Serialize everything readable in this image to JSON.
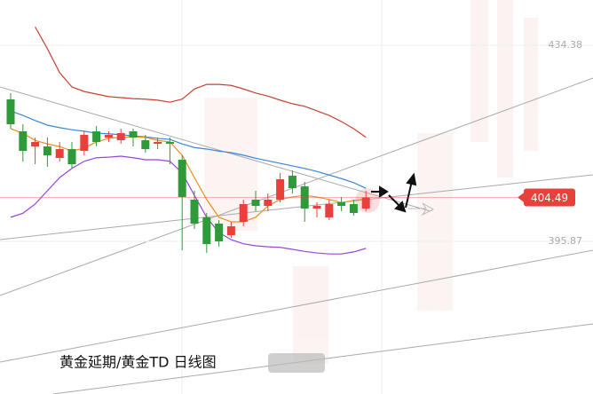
{
  "chart_data": {
    "type": "candlestick",
    "title": "黄金延期/黄金TD 日线图",
    "open": [
      423.75,
      417.48,
      414.52,
      414.52,
      412.25,
      413.99,
      413.64,
      417.48,
      416.26,
      415.74,
      417.48,
      415.74,
      415.04,
      415.39,
      411.9,
      404.06,
      400.58,
      399.36,
      397.09,
      399.7,
      404.06,
      402.84,
      404.06,
      408.77,
      406.67,
      402.32,
      400.58,
      403.54,
      403.19,
      402.32
    ],
    "high": [
      424.97,
      418.87,
      416.26,
      416.26,
      415.39,
      415.39,
      417.48,
      418.52,
      417.48,
      418.0,
      418.0,
      416.78,
      416.26,
      416.26,
      412.77,
      405.8,
      401.45,
      400.05,
      399.7,
      404.06,
      405.8,
      405.28,
      409.29,
      409.81,
      407.55,
      403.54,
      404.06,
      404.58,
      404.06,
      405.8
    ],
    "low": [
      418.0,
      411.55,
      411.03,
      410.51,
      411.55,
      410.16,
      412.77,
      414.52,
      415.39,
      415.04,
      414.52,
      413.3,
      413.99,
      411.03,
      394.13,
      398.31,
      393.61,
      394.83,
      396.57,
      398.83,
      401.8,
      401.8,
      403.54,
      405.28,
      399.7,
      400.58,
      400.05,
      401.8,
      400.92,
      401.8
    ],
    "close": [
      418.87,
      413.64,
      415.39,
      412.77,
      413.99,
      411.03,
      416.78,
      415.39,
      416.78,
      417.13,
      416.26,
      413.99,
      415.39,
      415.04,
      404.58,
      399.36,
      395.35,
      395.87,
      398.83,
      403.19,
      402.84,
      404.06,
      408.07,
      406.33,
      402.32,
      402.84,
      403.19,
      402.84,
      401.45,
      404.49
    ],
    "up_color": "#e8403a",
    "down_color": "#2e9a3a",
    "lines": [
      {
        "color": "#3d86d6",
        "values": [
          421.5,
          420.6,
          419.6,
          418.7,
          418.2,
          417.8,
          417.5,
          417.1,
          417.0,
          416.8,
          416.6,
          416.4,
          416.1,
          415.9,
          415.0,
          414.3,
          414.0,
          413.6,
          413.3,
          412.8,
          412.2,
          411.7,
          411.2,
          410.7,
          410.2,
          409.6,
          408.9,
          408.2,
          407.4,
          406.3
        ]
      },
      {
        "color": "#f08c1a",
        "values": [
          418.0,
          417.1,
          415.7,
          415.0,
          414.5,
          413.6,
          414.2,
          415.4,
          416.1,
          416.3,
          416.4,
          416.3,
          415.7,
          415.4,
          412.8,
          408.4,
          404.1,
          400.6,
          399.7,
          399.7,
          400.6,
          402.8,
          404.1,
          404.6,
          404.9,
          404.6,
          404.1,
          403.5,
          403.9,
          404.2
        ]
      },
      {
        "color": "#9b44d8",
        "values": [
          400.6,
          401.4,
          403.2,
          405.8,
          408.4,
          410.2,
          411.6,
          412.3,
          412.4,
          412.6,
          412.3,
          411.9,
          411.9,
          411.6,
          409.3,
          404.9,
          400.6,
          397.6,
          396.2,
          395.4,
          395.0,
          394.8,
          394.7,
          394.3,
          393.9,
          393.6,
          393.4,
          393.4,
          393.8,
          394.5
        ]
      },
      {
        "color": "#c8412e",
        "values": [
          null,
          null,
          438.0,
          433.7,
          429.0,
          426.2,
          425.3,
          424.8,
          424.3,
          424.1,
          423.9,
          423.8,
          423.6,
          423.2,
          423.8,
          425.8,
          426.7,
          426.7,
          426.5,
          425.8,
          425.0,
          424.4,
          423.6,
          422.9,
          422.4,
          421.5,
          420.6,
          419.4,
          418.0,
          416.3
        ]
      }
    ],
    "last_price": 404.49,
    "last_price_color": "#e8403a",
    "ylim": [
      365.9,
      443.27
    ],
    "yticks": [
      434.38,
      395.87
    ]
  }
}
